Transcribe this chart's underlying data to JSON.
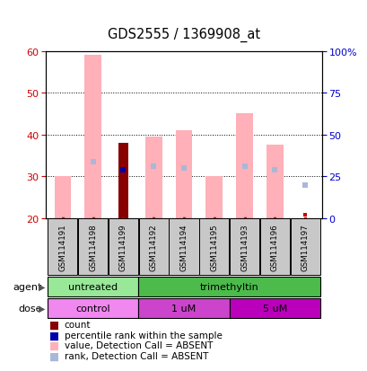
{
  "title": "GDS2555 / 1369908_at",
  "samples": [
    "GSM114191",
    "GSM114198",
    "GSM114199",
    "GSM114192",
    "GSM114194",
    "GSM114195",
    "GSM114193",
    "GSM114196",
    "GSM114197"
  ],
  "ylim_left": [
    20,
    60
  ],
  "ylim_right": [
    0,
    100
  ],
  "yticks_left": [
    20,
    30,
    40,
    50,
    60
  ],
  "yticks_right": [
    0,
    25,
    50,
    75,
    100
  ],
  "ytick_labels_right": [
    "0",
    "25",
    "50",
    "75",
    "100%"
  ],
  "value_absent": [
    30,
    59,
    null,
    39.5,
    41,
    30,
    45,
    37.5,
    null
  ],
  "rank_absent": [
    null,
    33.5,
    null,
    32.5,
    32,
    null,
    32.5,
    31.5,
    28
  ],
  "count_bar": [
    null,
    null,
    38,
    null,
    null,
    null,
    null,
    null,
    null
  ],
  "percentile_rank": [
    null,
    null,
    31.5,
    null,
    null,
    null,
    null,
    null,
    null
  ],
  "small_red_top": [
    null,
    null,
    null,
    null,
    null,
    null,
    null,
    null,
    20.8
  ],
  "agent_groups": [
    {
      "label": "untreated",
      "start": 0,
      "end": 3,
      "color": "#98E898"
    },
    {
      "label": "trimethyltin",
      "start": 3,
      "end": 9,
      "color": "#4CBB4C"
    }
  ],
  "dose_groups": [
    {
      "label": "control",
      "start": 0,
      "end": 3,
      "color": "#F088F0"
    },
    {
      "label": "1 uM",
      "start": 3,
      "end": 6,
      "color": "#CC44CC"
    },
    {
      "label": "5 uM",
      "start": 6,
      "end": 9,
      "color": "#BB00BB"
    }
  ],
  "color_value_absent": "#FFB0B8",
  "color_rank_absent": "#A8B8D8",
  "color_count": "#880000",
  "color_percentile": "#0000AA",
  "bar_width": 0.55,
  "sample_bg_color": "#C8C8C8",
  "left_axis_color": "#CC0000",
  "right_axis_color": "#0000CC"
}
